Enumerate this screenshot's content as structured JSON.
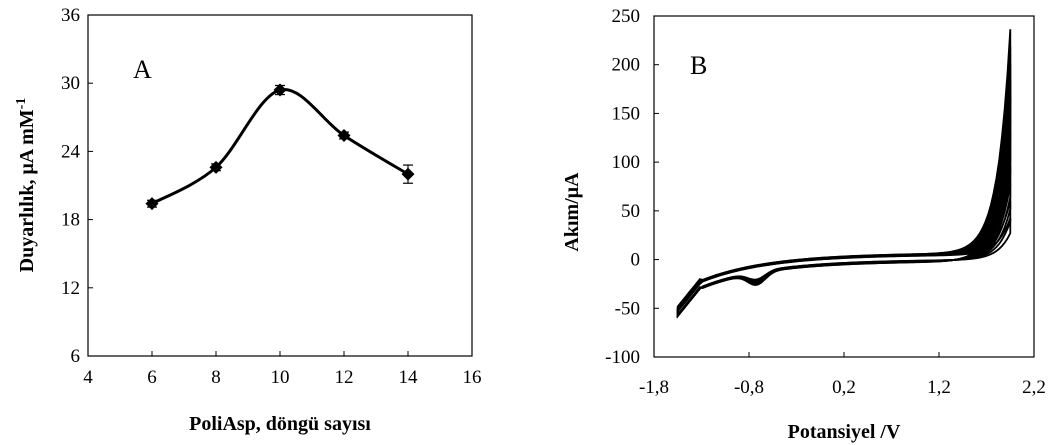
{
  "chart_data": [
    {
      "type": "line",
      "panel_label": "A",
      "xlabel": "PoliAsp, döngü sayısı",
      "ylabel": "Duyarlılık, μA mM",
      "ylabel_sup": "-1",
      "xlim": [
        4,
        16
      ],
      "ylim": [
        6,
        36
      ],
      "xticks": [
        "4",
        "6",
        "8",
        "10",
        "12",
        "14",
        "16"
      ],
      "yticks": [
        "6",
        "12",
        "18",
        "24",
        "30",
        "36"
      ],
      "marker": "diamond",
      "series": [
        {
          "x": [
            6,
            8,
            10,
            12,
            14
          ],
          "y": [
            19.4,
            22.6,
            29.4,
            25.4,
            22.0
          ],
          "err": [
            0.3,
            0.3,
            0.4,
            0.3,
            0.8
          ]
        }
      ]
    },
    {
      "type": "line",
      "panel_label": "B",
      "xlabel": "Potansiyel /V",
      "ylabel": "Akım/μA",
      "xlim": [
        -1.8,
        2.2
      ],
      "ylim": [
        -100,
        250
      ],
      "xticks": [
        "-1,8",
        "-0,8",
        "0,2",
        "1,2",
        "2,2"
      ],
      "yticks": [
        "-100",
        "-50",
        "0",
        "50",
        "100",
        "150",
        "200",
        "250"
      ],
      "cycles": 12,
      "peak_current_range_uA": [
        38,
        230
      ]
    }
  ]
}
